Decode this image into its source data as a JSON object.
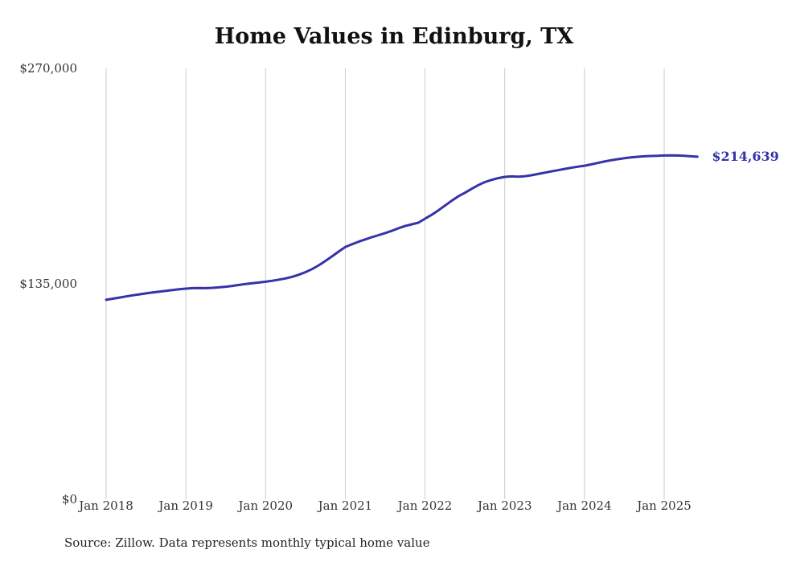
{
  "title": "Home Values in Edinburg, TX",
  "source_note": "Source: Zillow. Data represents monthly typical home value",
  "chart_data": {
    "type": "line",
    "title": "Home Values in Edinburg, TX",
    "series_name": "Monthly typical home value",
    "x_start": "Jan 2018",
    "x_interval": "monthly",
    "end_label": "$214,639",
    "end_value": 214639,
    "line_color": "#3632a8",
    "grid_color": "#cccccc",
    "ylim": [
      0,
      270000
    ],
    "y_ticks": [
      {
        "value": 0,
        "label": "$0"
      },
      {
        "value": 135000,
        "label": "$135,000"
      },
      {
        "value": 270000,
        "label": "$270,000"
      }
    ],
    "x_ticks": [
      {
        "month_index": 0,
        "label": "Jan 2018"
      },
      {
        "month_index": 12,
        "label": "Jan 2019"
      },
      {
        "month_index": 24,
        "label": "Jan 2020"
      },
      {
        "month_index": 36,
        "label": "Jan 2021"
      },
      {
        "month_index": 48,
        "label": "Jan 2022"
      },
      {
        "month_index": 60,
        "label": "Jan 2023"
      },
      {
        "month_index": 72,
        "label": "Jan 2024"
      },
      {
        "month_index": 84,
        "label": "Jan 2025"
      }
    ],
    "values": [
      125000,
      125700,
      126400,
      127100,
      127800,
      128400,
      129000,
      129600,
      130100,
      130600,
      131100,
      131600,
      132000,
      132300,
      132400,
      132300,
      132500,
      132800,
      133200,
      133700,
      134300,
      134900,
      135400,
      135800,
      136300,
      136900,
      137600,
      138400,
      139400,
      140700,
      142300,
      144200,
      146600,
      149300,
      152200,
      155200,
      158000,
      159800,
      161400,
      162800,
      164200,
      165500,
      166800,
      168200,
      169800,
      171200,
      172300,
      173300,
      175800,
      178200,
      181000,
      184000,
      187000,
      189800,
      192000,
      194500,
      196800,
      198700,
      200100,
      201200,
      202000,
      202300,
      202100,
      202400,
      203000,
      203800,
      204600,
      205400,
      206200,
      207000,
      207700,
      208400,
      209000,
      209800,
      210700,
      211600,
      212400,
      213100,
      213700,
      214200,
      214600,
      214900,
      215100,
      215200,
      215400,
      215500,
      215400,
      215200,
      214900,
      214639
    ]
  }
}
